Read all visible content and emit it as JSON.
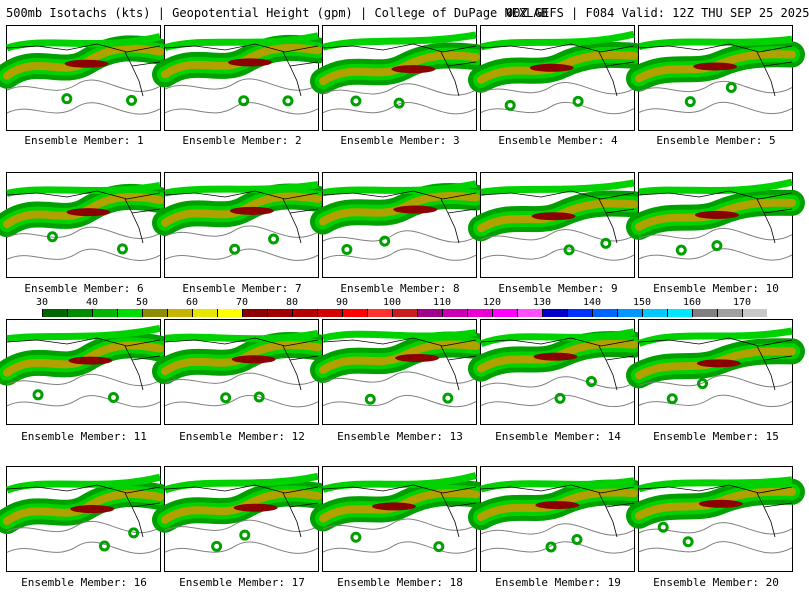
{
  "header": {
    "left": "500mb Isotachs (kts) | Geopotential Height (gpm) | College of DuPage NEXLAB",
    "right": "00Z GEFS | F084 Valid: 12Z THU SEP 25 2025"
  },
  "members": [
    "Ensemble Member: 1",
    "Ensemble Member: 2",
    "Ensemble Member: 3",
    "Ensemble Member: 4",
    "Ensemble Member: 5",
    "Ensemble Member: 6",
    "Ensemble Member: 7",
    "Ensemble Member: 8",
    "Ensemble Member: 9",
    "Ensemble Member: 10",
    "Ensemble Member: 11",
    "Ensemble Member: 12",
    "Ensemble Member: 13",
    "Ensemble Member: 14",
    "Ensemble Member: 15",
    "Ensemble Member: 16",
    "Ensemble Member: 17",
    "Ensemble Member: 18",
    "Ensemble Member: 19",
    "Ensemble Member: 20"
  ],
  "colorbar": {
    "labels": [
      "30",
      "40",
      "50",
      "60",
      "70",
      "80",
      "90",
      "100",
      "110",
      "120",
      "130",
      "140",
      "150",
      "160",
      "170"
    ],
    "colors": [
      "#006400",
      "#008c00",
      "#00b400",
      "#00dc00",
      "#8c8c00",
      "#c8b400",
      "#e6e600",
      "#ffff00",
      "#8b0000",
      "#a00000",
      "#b40000",
      "#d20000",
      "#ff0000",
      "#ff3232",
      "#c81e1e",
      "#a0008c",
      "#c800b4",
      "#e600d2",
      "#ff00ff",
      "#ff50ff",
      "#0000c8",
      "#0032ff",
      "#0064ff",
      "#0096ff",
      "#00c8ff",
      "#00e6ff",
      "#808080",
      "#a0a0a0",
      "#c8c8c8"
    ]
  },
  "map_colors": {
    "jet_outer": "#00a000",
    "jet_mid": "#00d200",
    "jet_inner": "#b0a000",
    "jet_core": "#8b0000",
    "height_contour": "#808080",
    "coastline": "#000000"
  }
}
